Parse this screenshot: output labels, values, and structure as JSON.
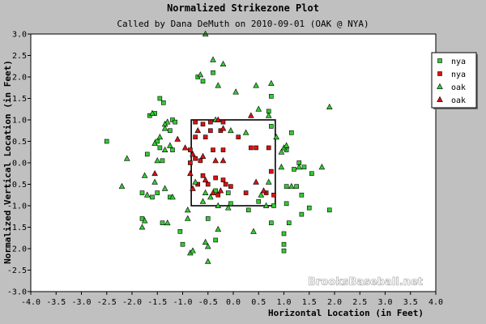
{
  "chart_data": {
    "type": "scatter",
    "title": "Normalized Strikezone Plot",
    "subtitle": "Called by Dana DeMuth on 2010-09-01 (OAK @ NYA)",
    "xlabel": "Horizontal Location (in Feet)",
    "ylabel": "Normalized Vertical Location (in Feet)",
    "xlim": [
      -4.0,
      4.0
    ],
    "ylim": [
      -3.0,
      3.0
    ],
    "x_ticks": [
      "-4.0",
      "-3.5",
      "-3.0",
      "-2.5",
      "-2.0",
      "-1.5",
      "-1.0",
      "-0.5",
      "0.0",
      "0.5",
      "1.0",
      "1.5",
      "2.0",
      "2.5",
      "3.0",
      "3.5",
      "4.0"
    ],
    "y_ticks": [
      "3.0",
      "2.5",
      "2.0",
      "1.5",
      "1.0",
      "0.5",
      "0.0",
      "-0.5",
      "-1.0",
      "-1.5",
      "-2.0",
      "-2.5",
      "-3.0"
    ],
    "grid": false,
    "legend_position": "top-right",
    "strike_zone": {
      "x": [
        -0.83,
        0.83
      ],
      "y": [
        -1.0,
        1.0
      ]
    },
    "watermark": "BrooksBaseball.net",
    "series": [
      {
        "name": "nya",
        "marker": "square",
        "color": "#33cc33",
        "points": [
          [
            -2.5,
            0.5
          ],
          [
            -0.7,
            2.0
          ],
          [
            -0.6,
            1.9
          ],
          [
            -0.4,
            2.1
          ],
          [
            -1.45,
            1.5
          ],
          [
            -1.38,
            1.4
          ],
          [
            -1.55,
            1.15
          ],
          [
            -1.65,
            1.1
          ],
          [
            -1.2,
            1.0
          ],
          [
            -1.15,
            0.95
          ],
          [
            -1.25,
            0.75
          ],
          [
            -1.5,
            0.5
          ],
          [
            -1.45,
            0.35
          ],
          [
            -1.2,
            0.3
          ],
          [
            -1.7,
            0.2
          ],
          [
            -1.4,
            0.05
          ],
          [
            -1.8,
            -0.7
          ],
          [
            -1.5,
            -0.7
          ],
          [
            -1.6,
            -0.8
          ],
          [
            -1.25,
            -0.8
          ],
          [
            -1.8,
            -1.3
          ],
          [
            -1.4,
            -1.4
          ],
          [
            -1.05,
            -1.6
          ],
          [
            -1.0,
            -1.9
          ],
          [
            -0.5,
            -1.3
          ],
          [
            -0.35,
            -1.8
          ],
          [
            0.75,
            1.55
          ],
          [
            0.7,
            1.2
          ],
          [
            1.15,
            0.7
          ],
          [
            1.05,
            0.3
          ],
          [
            1.3,
            0.0
          ],
          [
            1.4,
            -0.1
          ],
          [
            1.2,
            -0.15
          ],
          [
            1.55,
            -0.25
          ],
          [
            1.05,
            -0.55
          ],
          [
            1.25,
            -0.55
          ],
          [
            1.35,
            -0.75
          ],
          [
            1.05,
            -0.95
          ],
          [
            1.5,
            -1.05
          ],
          [
            1.35,
            -1.2
          ],
          [
            1.1,
            -1.4
          ],
          [
            1.0,
            -1.65
          ],
          [
            1.0,
            -1.9
          ],
          [
            1.0,
            -2.05
          ],
          [
            0.75,
            -1.4
          ],
          [
            1.9,
            -1.1
          ],
          [
            0.3,
            -1.1
          ],
          [
            0.5,
            -0.9
          ],
          [
            0.8,
            -1.0
          ],
          [
            0.75,
            0.85
          ],
          [
            -0.05,
            -0.95
          ],
          [
            -0.1,
            -0.7
          ],
          [
            -0.35,
            -0.65
          ]
        ]
      },
      {
        "name": "nya",
        "marker": "square",
        "color": "#dd1111",
        "points": [
          [
            -0.75,
            0.95
          ],
          [
            -0.6,
            0.9
          ],
          [
            -0.45,
            0.95
          ],
          [
            -0.2,
            0.95
          ],
          [
            -0.45,
            0.75
          ],
          [
            -0.25,
            0.75
          ],
          [
            -0.75,
            0.6
          ],
          [
            -0.55,
            0.6
          ],
          [
            -0.85,
            0.3
          ],
          [
            -0.75,
            0.1
          ],
          [
            -0.65,
            0.05
          ],
          [
            -0.85,
            0.0
          ],
          [
            -0.6,
            -0.3
          ],
          [
            -0.4,
            0.3
          ],
          [
            -0.2,
            0.3
          ],
          [
            0.1,
            0.6
          ],
          [
            0.35,
            0.35
          ],
          [
            0.45,
            0.35
          ],
          [
            0.7,
            0.35
          ],
          [
            0.75,
            -0.2
          ],
          [
            -0.35,
            -0.35
          ],
          [
            -0.2,
            -0.4
          ],
          [
            -0.7,
            -0.5
          ],
          [
            -0.5,
            -0.5
          ],
          [
            -0.3,
            -0.75
          ],
          [
            -0.15,
            -0.5
          ],
          [
            -0.05,
            -0.55
          ],
          [
            0.25,
            -0.7
          ],
          [
            0.65,
            -0.7
          ],
          [
            0.8,
            -0.75
          ]
        ]
      },
      {
        "name": "oak",
        "marker": "triangle",
        "color": "#33cc33",
        "points": [
          [
            -0.55,
            3.0
          ],
          [
            -0.4,
            2.4
          ],
          [
            -0.2,
            2.3
          ],
          [
            -0.65,
            2.05
          ],
          [
            -0.3,
            1.8
          ],
          [
            0.45,
            1.8
          ],
          [
            0.75,
            1.85
          ],
          [
            0.05,
            1.65
          ],
          [
            -1.6,
            1.15
          ],
          [
            1.9,
            1.3
          ],
          [
            -0.35,
            1.0
          ],
          [
            -1.3,
            0.95
          ],
          [
            -1.35,
            0.9
          ],
          [
            -1.35,
            0.8
          ],
          [
            -1.45,
            0.6
          ],
          [
            -1.55,
            0.45
          ],
          [
            -1.25,
            0.4
          ],
          [
            -1.35,
            0.3
          ],
          [
            -1.5,
            0.05
          ],
          [
            -2.1,
            0.1
          ],
          [
            -1.75,
            -0.3
          ],
          [
            -1.55,
            -0.45
          ],
          [
            -1.35,
            -0.6
          ],
          [
            -2.2,
            -0.55
          ],
          [
            -1.7,
            -0.75
          ],
          [
            -1.2,
            -0.8
          ],
          [
            -0.75,
            -0.45
          ],
          [
            -0.55,
            -0.7
          ],
          [
            -0.45,
            -0.8
          ],
          [
            -0.6,
            -0.9
          ],
          [
            -0.9,
            -1.1
          ],
          [
            -1.3,
            -1.4
          ],
          [
            -0.9,
            -1.3
          ],
          [
            -1.75,
            -1.35
          ],
          [
            -1.8,
            -1.5
          ],
          [
            -0.3,
            -1.55
          ],
          [
            -0.55,
            -1.85
          ],
          [
            -0.5,
            -1.95
          ],
          [
            -0.85,
            -2.1
          ],
          [
            -0.8,
            -2.05
          ],
          [
            -0.5,
            -2.3
          ],
          [
            0.95,
            0.25
          ],
          [
            1.0,
            0.35
          ],
          [
            1.05,
            0.4
          ],
          [
            0.95,
            -0.1
          ],
          [
            1.3,
            -0.1
          ],
          [
            0.85,
            0.6
          ],
          [
            0.5,
            1.25
          ],
          [
            0.7,
            1.1
          ],
          [
            0.25,
            0.7
          ],
          [
            -0.05,
            0.75
          ],
          [
            1.75,
            -0.1
          ],
          [
            1.15,
            -0.55
          ],
          [
            0.55,
            -0.75
          ],
          [
            0.7,
            -0.45
          ],
          [
            0.65,
            -1.0
          ],
          [
            -0.3,
            -1.0
          ],
          [
            -0.1,
            -1.05
          ],
          [
            0.4,
            -1.6
          ]
        ]
      },
      {
        "name": "oak",
        "marker": "triangle",
        "color": "#dd1111",
        "points": [
          [
            0.35,
            1.1
          ],
          [
            -0.3,
            1.0
          ],
          [
            -0.2,
            0.8
          ],
          [
            -0.7,
            0.75
          ],
          [
            -1.1,
            0.55
          ],
          [
            -0.95,
            0.35
          ],
          [
            -0.8,
            0.2
          ],
          [
            -0.6,
            0.15
          ],
          [
            -0.35,
            0.05
          ],
          [
            -0.2,
            0.05
          ],
          [
            -0.85,
            -0.25
          ],
          [
            -1.55,
            -0.25
          ],
          [
            -0.55,
            -0.4
          ],
          [
            0.6,
            -0.65
          ],
          [
            -0.4,
            -0.7
          ],
          [
            0.45,
            -0.45
          ],
          [
            -0.25,
            -0.65
          ],
          [
            -0.8,
            -0.6
          ]
        ]
      }
    ]
  }
}
